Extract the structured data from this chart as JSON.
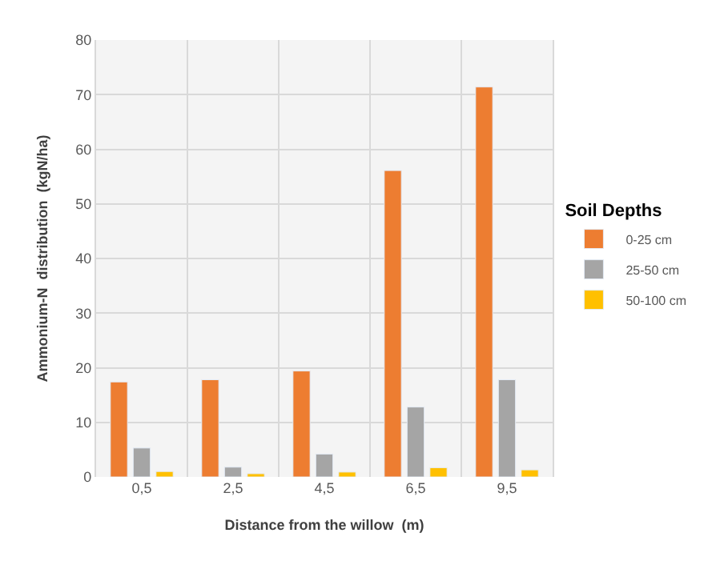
{
  "chart_data": {
    "type": "bar",
    "xlabel": "Distance from the willow  (m)",
    "ylabel": "Ammonium-N  distribution  (kgN/ha)",
    "legend_title": "Soil Depths",
    "categories": [
      "0,5",
      "2,5",
      "4,5",
      "6,5",
      "9,5"
    ],
    "series": [
      {
        "name": "0-25 cm",
        "color": "#ed7d31",
        "values": [
          17.4,
          17.8,
          19.4,
          56.1,
          71.4
        ]
      },
      {
        "name": "25-50 cm",
        "color": "#a5a5a5",
        "values": [
          5.3,
          1.8,
          4.2,
          12.8,
          17.8
        ]
      },
      {
        "name": "50-100 cm",
        "color": "#ffc000",
        "values": [
          1.0,
          0.6,
          0.9,
          1.7,
          1.3
        ]
      }
    ],
    "ylim": [
      0,
      80
    ],
    "yticks": [
      0,
      10,
      20,
      30,
      40,
      50,
      60,
      70,
      80
    ],
    "grid": true,
    "legend": "right"
  }
}
